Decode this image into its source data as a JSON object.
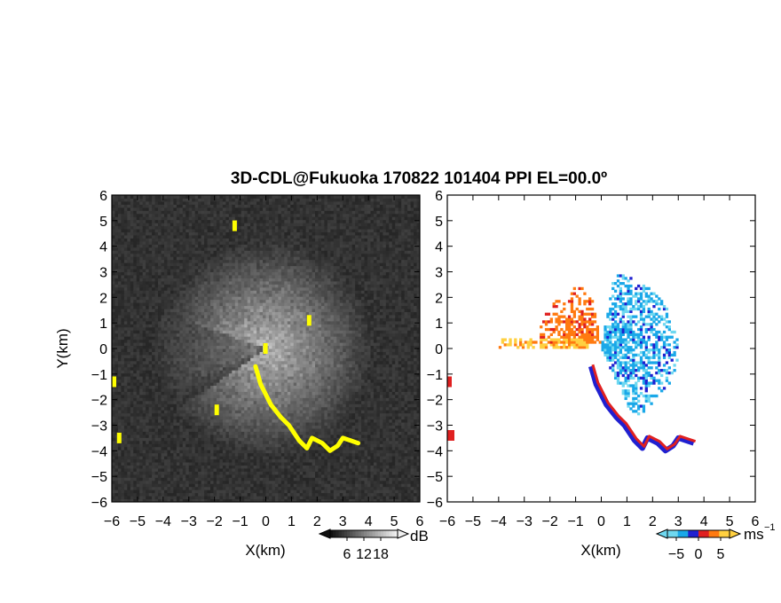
{
  "figure": {
    "title": "3D-CDL@Fukuoka 170822 101404 PPI EL=00.0º"
  },
  "colors": {
    "background": "#ffffff",
    "power_low": "#1e1e1e",
    "power_high": "#d8d8d8",
    "power_mask": "#ffff00",
    "vel_neg_strong": "#2020d0",
    "vel_neg": "#1aa8e8",
    "vel_neg_weak": "#6fd8f0",
    "vel_pos_weak": "#ffd040",
    "vel_pos": "#ff7a10",
    "vel_pos_strong": "#e02020"
  },
  "chart_data": [
    {
      "type": "heatmap",
      "name": "power",
      "xlabel": "X(km)",
      "ylabel": "Y(km)",
      "xlim": [
        -6,
        6
      ],
      "ylim": [
        -6,
        6
      ],
      "xticks": [
        "−6",
        "−5",
        "−4",
        "−3",
        "−2",
        "−1",
        "0",
        "1",
        "2",
        "3",
        "4",
        "5",
        "6"
      ],
      "yticks": [
        "6",
        "5",
        "4",
        "3",
        "2",
        "1",
        "0",
        "−1",
        "−2",
        "−3",
        "−4",
        "−5",
        "−6"
      ],
      "colorbar": {
        "ticks": [
          "6",
          "12",
          "18"
        ],
        "unit": "dB",
        "range": [
          0,
          24
        ]
      },
      "features": {
        "bright_sector_deg": [
          -145,
          160
        ],
        "yellow_echo_path_km": [
          [
            -0.4,
            -0.7
          ],
          [
            -0.2,
            -1.4
          ],
          [
            0.2,
            -2.2
          ],
          [
            0.6,
            -2.7
          ],
          [
            0.9,
            -3.0
          ],
          [
            1.3,
            -3.6
          ],
          [
            1.6,
            -3.9
          ],
          [
            1.8,
            -3.5
          ],
          [
            2.2,
            -3.7
          ],
          [
            2.5,
            -4.0
          ],
          [
            2.8,
            -3.8
          ],
          [
            3.0,
            -3.5
          ],
          [
            3.3,
            -3.6
          ],
          [
            3.6,
            -3.7
          ]
        ],
        "yellow_blobs_km": [
          [
            -6.0,
            -1.3
          ],
          [
            -5.8,
            -3.5
          ],
          [
            -2.0,
            -2.4
          ],
          [
            -1.3,
            4.8
          ],
          [
            1.6,
            1.1
          ],
          [
            -0.1,
            0.0
          ]
        ]
      }
    },
    {
      "type": "heatmap",
      "name": "radial_velocity",
      "xlabel": "X(km)",
      "xlim": [
        -6,
        6
      ],
      "ylim": [
        -6,
        6
      ],
      "xticks": [
        "−6",
        "−5",
        "−4",
        "−3",
        "−2",
        "−1",
        "0",
        "1",
        "2",
        "3",
        "4",
        "5",
        "6"
      ],
      "colorbar": {
        "ticks": [
          "−5",
          "0",
          "5"
        ],
        "unit": "ms",
        "unit_exp": "−1",
        "range": [
          -7,
          7
        ]
      },
      "features": {
        "positive_lobe_deg": [
          100,
          215
        ],
        "negative_lobe_deg": [
          -65,
          80
        ],
        "shear_path_km": [
          [
            -0.4,
            -0.7
          ],
          [
            -0.2,
            -1.4
          ],
          [
            0.2,
            -2.2
          ],
          [
            0.6,
            -2.7
          ],
          [
            0.9,
            -3.0
          ],
          [
            1.3,
            -3.6
          ],
          [
            1.6,
            -3.9
          ],
          [
            1.8,
            -3.5
          ],
          [
            2.2,
            -3.7
          ],
          [
            2.5,
            -4.0
          ],
          [
            2.8,
            -3.8
          ],
          [
            3.0,
            -3.5
          ],
          [
            3.3,
            -3.6
          ],
          [
            3.6,
            -3.7
          ]
        ]
      }
    }
  ]
}
